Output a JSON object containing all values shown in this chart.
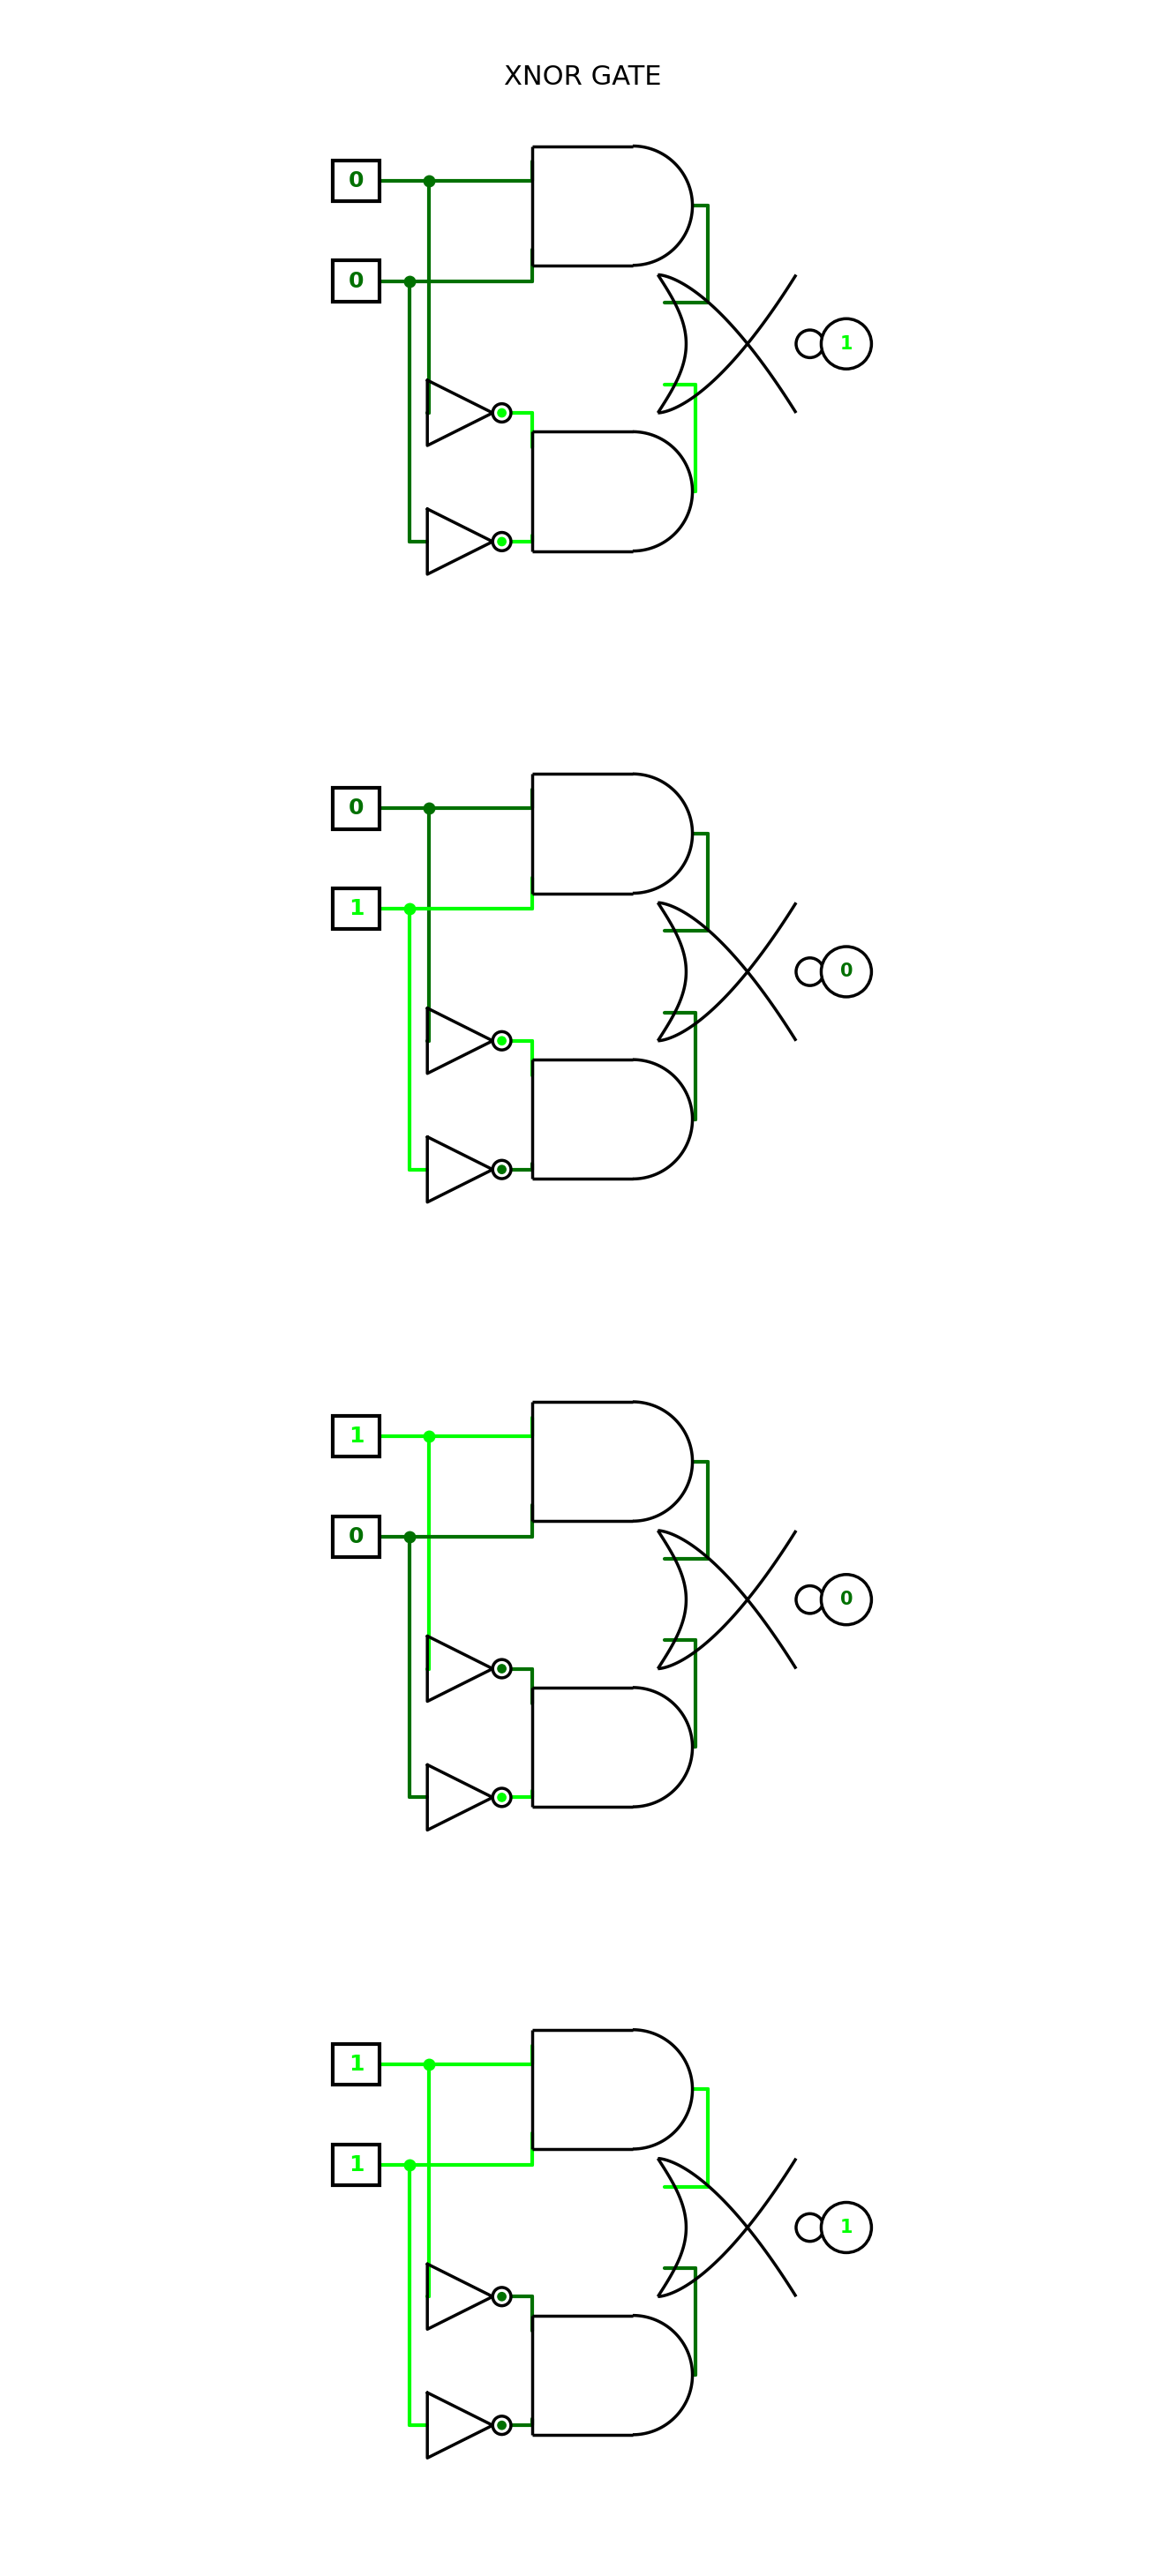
{
  "title": "XNOR GATE",
  "title_fontsize": 22,
  "cases": [
    {
      "A": 0,
      "B": 0,
      "out_val": 1
    },
    {
      "A": 0,
      "B": 1,
      "out_val": 0
    },
    {
      "A": 1,
      "B": 0,
      "out_val": 0
    },
    {
      "A": 1,
      "B": 1,
      "out_val": 1
    }
  ],
  "dark_green": "#007000",
  "bright_green": "#00FF00",
  "wire_lw": 3.0,
  "gate_lw": 2.5,
  "bg_color": "#ffffff"
}
